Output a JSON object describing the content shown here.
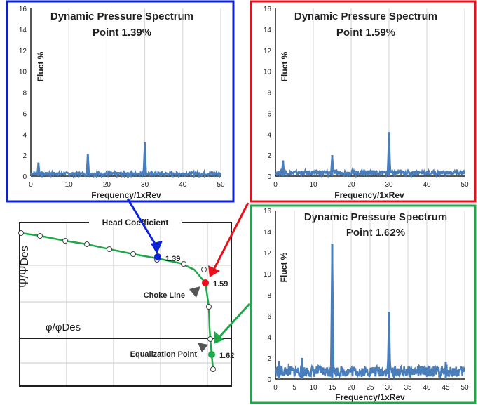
{
  "chart_data": [
    {
      "type": "line",
      "title": "Dynamic Pressure Spectrum",
      "subtitle": "Point 1.39%",
      "xlabel": "Frequency/1xRev",
      "ylabel": "Fluct  %",
      "xlim": [
        0,
        50
      ],
      "ylim": [
        0,
        16
      ],
      "xticks": [
        "0",
        "10",
        "20",
        "30",
        "40",
        "50"
      ],
      "yticks": [
        "0",
        "2",
        "4",
        "6",
        "8",
        "10",
        "12",
        "14",
        "16"
      ],
      "grid": "vertical",
      "frame_color": "#0a21d6",
      "series": [
        {
          "color": "#4a7ebb",
          "baseline": 0.25,
          "peaks": [
            {
              "x": 2,
              "y": 1.3
            },
            {
              "x": 15,
              "y": 2.1
            },
            {
              "x": 30,
              "y": 3.2
            }
          ]
        }
      ]
    },
    {
      "type": "line",
      "title": "Dynamic Pressure Spectrum",
      "subtitle": "Point 1.59%",
      "xlabel": "Frequency/1xRev",
      "ylabel": "Fluct  %",
      "xlim": [
        0,
        50
      ],
      "ylim": [
        0,
        16
      ],
      "xticks": [
        "0",
        "10",
        "20",
        "30",
        "40",
        "50"
      ],
      "yticks": [
        "0",
        "2",
        "4",
        "6",
        "8",
        "10",
        "12",
        "14",
        "16"
      ],
      "grid": "vertical",
      "frame_color": "#e8101a",
      "series": [
        {
          "color": "#4a7ebb",
          "baseline": 0.35,
          "peaks": [
            {
              "x": 2,
              "y": 1.5
            },
            {
              "x": 15,
              "y": 2.0
            },
            {
              "x": 30,
              "y": 4.2
            }
          ]
        }
      ]
    },
    {
      "type": "line",
      "title": "Dynamic Pressure Spectrum",
      "subtitle": "Point 1.62%",
      "xlabel": "Frequency/1xRev",
      "ylabel": "Fluct %",
      "xlim": [
        0,
        50
      ],
      "ylim": [
        0,
        16
      ],
      "xticks": [
        "0",
        "5",
        "10",
        "15",
        "20",
        "25",
        "30",
        "35",
        "40",
        "45",
        "50"
      ],
      "yticks": [
        "0",
        "2",
        "4",
        "6",
        "8",
        "10",
        "12",
        "14",
        "16"
      ],
      "grid": "vertical",
      "frame_color": "#1fa84a",
      "series": [
        {
          "color": "#4a7ebb",
          "baseline": 0.8,
          "peaks": [
            {
              "x": 1,
              "y": 1.7
            },
            {
              "x": 7,
              "y": 2.0
            },
            {
              "x": 15,
              "y": 12.8
            },
            {
              "x": 30,
              "y": 6.4
            },
            {
              "x": 45,
              "y": 1.6
            }
          ]
        }
      ]
    },
    {
      "type": "line",
      "title": "Head Coefficient",
      "ylabel": "Ψ/ΨDes",
      "xlabel": "φ/φDes",
      "curve_color": "#1fa84a",
      "annotations": {
        "choke": "Choke Line",
        "equalization": "Equalization Point"
      },
      "operating_points": [
        {
          "label": "1.39",
          "color": "#0a21d6"
        },
        {
          "label": "1.59",
          "color": "#e8101a"
        },
        {
          "label": "1.62",
          "color": "#1fa84a"
        }
      ]
    }
  ]
}
